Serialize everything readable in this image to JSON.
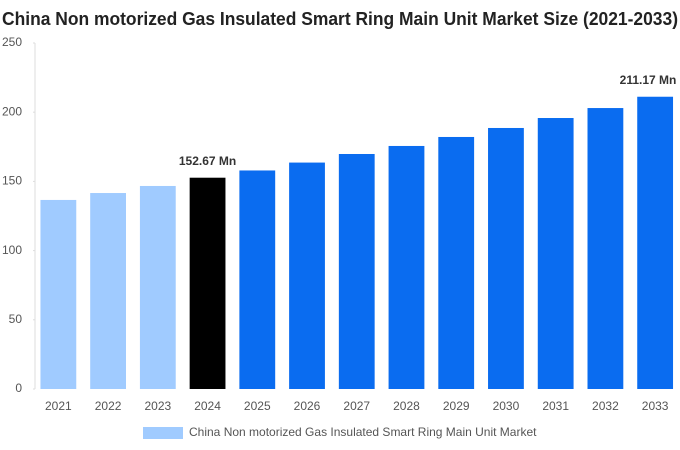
{
  "chart_data": {
    "type": "bar",
    "title": "China Non motorized Gas Insulated Smart Ring Main Unit Market Size (2021-2033)",
    "categories": [
      "2021",
      "2022",
      "2023",
      "2024",
      "2025",
      "2026",
      "2027",
      "2028",
      "2029",
      "2030",
      "2031",
      "2032",
      "2033"
    ],
    "series": [
      {
        "name": "China Non motorized Gas Insulated Smart Ring Main Unit Market",
        "color": "#a0cbff",
        "values": [
          136.6,
          141.6,
          146.7,
          152.67,
          157.9,
          163.6,
          169.8,
          175.6,
          182.1,
          188.6,
          195.8,
          203.0,
          211.17
        ],
        "value_labels": [
          null,
          null,
          null,
          "152.67 Mn",
          null,
          null,
          null,
          null,
          null,
          null,
          null,
          null,
          "211.17 Mn"
        ],
        "bar_colors": [
          "#a0cbff",
          "#a0cbff",
          "#a0cbff",
          "#000000",
          "#0a6cf0",
          "#0a6cf0",
          "#0a6cf0",
          "#0a6cf0",
          "#0a6cf0",
          "#0a6cf0",
          "#0a6cf0",
          "#0a6cf0",
          "#0a6cf0"
        ]
      }
    ],
    "ylim": [
      0,
      250
    ],
    "yticks": [
      0,
      50,
      100,
      150,
      200,
      250
    ],
    "grid": false
  }
}
